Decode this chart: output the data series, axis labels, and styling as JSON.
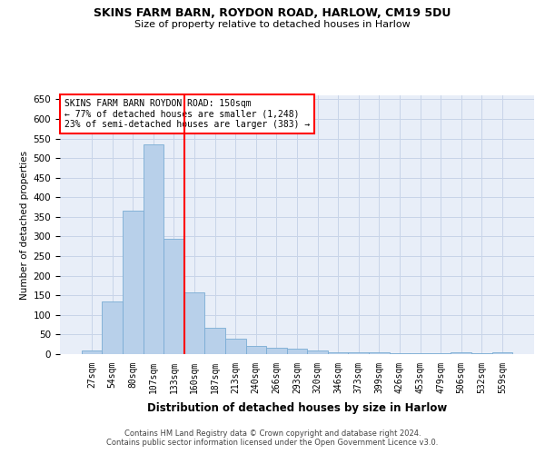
{
  "title1": "SKINS FARM BARN, ROYDON ROAD, HARLOW, CM19 5DU",
  "title2": "Size of property relative to detached houses in Harlow",
  "xlabel": "Distribution of detached houses by size in Harlow",
  "ylabel": "Number of detached properties",
  "categories": [
    "27sqm",
    "54sqm",
    "80sqm",
    "107sqm",
    "133sqm",
    "160sqm",
    "187sqm",
    "213sqm",
    "240sqm",
    "266sqm",
    "293sqm",
    "320sqm",
    "346sqm",
    "373sqm",
    "399sqm",
    "426sqm",
    "453sqm",
    "479sqm",
    "506sqm",
    "532sqm",
    "559sqm"
  ],
  "values": [
    10,
    135,
    365,
    535,
    295,
    158,
    67,
    40,
    20,
    16,
    13,
    9,
    5,
    5,
    5,
    3,
    3,
    3,
    4,
    3,
    4
  ],
  "bar_color": "#b8d0ea",
  "bar_edgecolor": "#7aacd4",
  "grid_color": "#c8d4e8",
  "background_color": "#e8eef8",
  "redline_x": 4.5,
  "annotation_title": "SKINS FARM BARN ROYDON ROAD: 150sqm",
  "annotation_line1": "← 77% of detached houses are smaller (1,248)",
  "annotation_line2": "23% of semi-detached houses are larger (383) →",
  "footer1": "Contains HM Land Registry data © Crown copyright and database right 2024.",
  "footer2": "Contains public sector information licensed under the Open Government Licence v3.0.",
  "ylim": [
    0,
    660
  ],
  "yticks": [
    0,
    50,
    100,
    150,
    200,
    250,
    300,
    350,
    400,
    450,
    500,
    550,
    600,
    650
  ]
}
